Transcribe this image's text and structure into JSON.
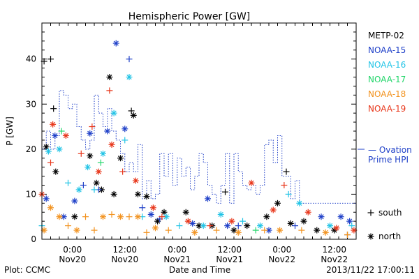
{
  "chart_data": {
    "type": "scatter",
    "title": "Hemispheric Power [GW]",
    "ylabel": "P [GW]",
    "xlabel": "Date and Time",
    "ylim": [
      0,
      48
    ],
    "xlim": [
      "2013-11-19 17:00",
      "2013-11-22 17:00"
    ],
    "y_ticks": [
      0,
      10,
      20,
      30,
      40
    ],
    "x_ticks": [
      {
        "time": "2013-11-20 00:00",
        "label": "0:00",
        "date": "Nov20"
      },
      {
        "time": "2013-11-20 12:00",
        "label": "12:00",
        "date": "Nov20"
      },
      {
        "time": "2013-11-21 00:00",
        "label": "0:00",
        "date": "Nov21"
      },
      {
        "time": "2013-11-21 12:00",
        "label": "12:00",
        "date": "Nov21"
      },
      {
        "time": "2013-11-22 00:00",
        "label": "0:00",
        "date": "Nov22"
      },
      {
        "time": "2013-11-22 12:00",
        "label": "12:00",
        "date": "Nov22"
      }
    ],
    "marker_legend": [
      {
        "symbol": "+",
        "label": "south"
      },
      {
        "symbol": "*",
        "label": "north"
      }
    ],
    "ovation": {
      "name": "Ovation Prime HPI",
      "name_line1": "— Ovation",
      "name_line2": "Prime HPI",
      "color": "#1e3fc8",
      "points": [
        [
          "2013-11-19 17:00",
          28
        ],
        [
          "2013-11-19 18:00",
          20
        ],
        [
          "2013-11-19 19:00",
          24
        ],
        [
          "2013-11-19 20:00",
          20
        ],
        [
          "2013-11-19 21:00",
          23
        ],
        [
          "2013-11-19 22:00",
          33
        ],
        [
          "2013-11-19 23:00",
          32
        ],
        [
          "2013-11-20 00:00",
          29
        ],
        [
          "2013-11-20 01:00",
          30
        ],
        [
          "2013-11-20 02:00",
          25
        ],
        [
          "2013-11-20 03:00",
          22
        ],
        [
          "2013-11-20 04:00",
          20
        ],
        [
          "2013-11-20 05:00",
          22
        ],
        [
          "2013-11-20 06:00",
          32
        ],
        [
          "2013-11-20 07:00",
          28
        ],
        [
          "2013-11-20 08:00",
          25
        ],
        [
          "2013-11-20 09:00",
          29
        ],
        [
          "2013-11-20 10:00",
          24
        ],
        [
          "2013-11-20 11:00",
          22
        ],
        [
          "2013-11-20 12:00",
          19
        ],
        [
          "2013-11-20 13:00",
          15
        ],
        [
          "2013-11-20 14:00",
          17
        ],
        [
          "2013-11-20 15:00",
          15
        ],
        [
          "2013-11-20 16:00",
          21
        ],
        [
          "2013-11-20 17:00",
          9
        ],
        [
          "2013-11-20 18:00",
          13
        ],
        [
          "2013-11-20 19:00",
          9
        ],
        [
          "2013-11-20 20:00",
          10
        ],
        [
          "2013-11-20 21:00",
          19
        ],
        [
          "2013-11-20 22:00",
          14
        ],
        [
          "2013-11-20 23:00",
          19
        ],
        [
          "2013-11-21 00:00",
          12
        ],
        [
          "2013-11-21 01:00",
          18
        ],
        [
          "2013-11-21 02:00",
          14
        ],
        [
          "2013-11-21 03:00",
          16
        ],
        [
          "2013-11-21 04:00",
          11
        ],
        [
          "2013-11-21 05:00",
          14
        ],
        [
          "2013-11-21 06:00",
          19
        ],
        [
          "2013-11-21 07:00",
          17
        ],
        [
          "2013-11-21 08:00",
          12
        ],
        [
          "2013-11-21 09:00",
          10
        ],
        [
          "2013-11-21 10:00",
          8
        ],
        [
          "2013-11-21 11:00",
          12
        ],
        [
          "2013-11-21 12:00",
          19
        ],
        [
          "2013-11-21 13:00",
          8
        ],
        [
          "2013-11-21 14:00",
          19
        ],
        [
          "2013-11-21 15:00",
          15
        ],
        [
          "2013-11-21 16:00",
          12
        ],
        [
          "2013-11-21 17:00",
          11
        ],
        [
          "2013-11-21 18:00",
          12
        ],
        [
          "2013-11-21 19:00",
          10
        ],
        [
          "2013-11-21 20:00",
          12
        ],
        [
          "2013-11-21 21:00",
          21
        ],
        [
          "2013-11-21 22:00",
          22
        ],
        [
          "2013-11-21 23:00",
          17
        ],
        [
          "2013-11-22 00:00",
          23
        ],
        [
          "2013-11-22 01:00",
          14
        ],
        [
          "2013-11-22 02:00",
          14
        ],
        [
          "2013-11-22 03:00",
          9
        ],
        [
          "2013-11-22 04:00",
          13
        ],
        [
          "2013-11-22 05:00",
          8
        ],
        [
          "2013-11-22 06:00",
          8
        ],
        [
          "2013-11-22 07:00",
          8
        ],
        [
          "2013-11-22 08:00",
          8
        ],
        [
          "2013-11-22 12:00",
          8
        ],
        [
          "2013-11-22 16:00",
          8
        ],
        [
          "2013-11-22 17:00",
          8
        ]
      ]
    },
    "series": [
      {
        "name": "METP-02",
        "color": "#000000",
        "points": [
          [
            "2013-11-19 17:30",
            39.5,
            "+"
          ],
          [
            "2013-11-19 19:00",
            40,
            "+"
          ],
          [
            "2013-11-19 19:40",
            29,
            "+"
          ],
          [
            "2013-11-19 18:00",
            20.5,
            "*"
          ],
          [
            "2013-11-19 20:10",
            15,
            "*"
          ],
          [
            "2013-11-20 00:30",
            5,
            "*"
          ],
          [
            "2013-11-20 04:00",
            18.5,
            "*"
          ],
          [
            "2013-11-20 05:30",
            12.5,
            "*"
          ],
          [
            "2013-11-20 06:40",
            11,
            "*"
          ],
          [
            "2013-11-20 08:30",
            36,
            "*"
          ],
          [
            "2013-11-20 09:30",
            10,
            "*"
          ],
          [
            "2013-11-20 11:00",
            18,
            "*"
          ],
          [
            "2013-11-20 13:30",
            28.5,
            "+"
          ],
          [
            "2013-11-20 14:00",
            27.5,
            "*"
          ],
          [
            "2013-11-20 15:00",
            10,
            "*"
          ],
          [
            "2013-11-20 17:00",
            9.5,
            "*"
          ],
          [
            "2013-11-20 19:30",
            4,
            "*"
          ],
          [
            "2013-11-20 21:00",
            6,
            "*"
          ],
          [
            "2013-11-21 02:00",
            6,
            "*"
          ],
          [
            "2013-11-21 05:00",
            3,
            "*"
          ],
          [
            "2013-11-21 08:00",
            3,
            "*"
          ],
          [
            "2013-11-21 11:00",
            10.5,
            "+"
          ],
          [
            "2013-11-21 13:00",
            2,
            "*"
          ],
          [
            "2013-11-21 16:00",
            3,
            "*"
          ],
          [
            "2013-11-21 20:30",
            5,
            "*"
          ],
          [
            "2013-11-21 23:00",
            8,
            "*"
          ],
          [
            "2013-11-22 01:00",
            15,
            "+"
          ],
          [
            "2013-11-22 02:00",
            3.5,
            "*"
          ],
          [
            "2013-11-22 05:00",
            4,
            "*"
          ],
          [
            "2013-11-22 08:00",
            2,
            "*"
          ],
          [
            "2013-11-22 12:00",
            2,
            "*"
          ],
          [
            "2013-11-22 15:00",
            1,
            "+"
          ]
        ]
      },
      {
        "name": "NOAA-15",
        "color": "#1e3fc8",
        "points": [
          [
            "2013-11-19 18:00",
            9,
            "*"
          ],
          [
            "2013-11-19 20:00",
            23,
            "*"
          ],
          [
            "2013-11-19 22:00",
            5,
            "*"
          ],
          [
            "2013-11-20 00:30",
            8.5,
            "*"
          ],
          [
            "2013-11-20 02:30",
            12,
            "+"
          ],
          [
            "2013-11-20 04:00",
            23.5,
            "*"
          ],
          [
            "2013-11-20 06:00",
            11,
            "+"
          ],
          [
            "2013-11-20 08:00",
            24,
            "*"
          ],
          [
            "2013-11-20 10:00",
            43.5,
            "*"
          ],
          [
            "2013-11-20 12:00",
            24.5,
            "*"
          ],
          [
            "2013-11-20 13:00",
            40,
            "+"
          ],
          [
            "2013-11-20 16:00",
            7,
            "+"
          ],
          [
            "2013-11-20 18:00",
            5.5,
            "*"
          ],
          [
            "2013-11-20 20:00",
            4.5,
            "+"
          ],
          [
            "2013-11-21 03:30",
            3.5,
            "*"
          ],
          [
            "2013-11-21 07:00",
            9,
            "*"
          ],
          [
            "2013-11-21 11:30",
            3,
            "*"
          ],
          [
            "2013-11-21 14:00",
            3,
            "+"
          ],
          [
            "2013-11-21 21:00",
            2,
            "*"
          ],
          [
            "2013-11-22 03:00",
            3,
            "+"
          ],
          [
            "2013-11-22 09:00",
            5,
            "*"
          ],
          [
            "2013-11-22 13:30",
            5,
            "*"
          ],
          [
            "2013-11-22 15:30",
            4,
            "*"
          ]
        ]
      },
      {
        "name": "NOAA-16",
        "color": "#22c4e6",
        "points": [
          [
            "2013-11-19 17:00",
            3,
            "+"
          ],
          [
            "2013-11-19 18:30",
            19.5,
            "*"
          ],
          [
            "2013-11-19 21:00",
            20,
            "*"
          ],
          [
            "2013-11-19 23:00",
            12.5,
            "+"
          ],
          [
            "2013-11-20 01:30",
            11,
            "*"
          ],
          [
            "2013-11-20 03:30",
            16,
            "*"
          ],
          [
            "2013-11-20 05:00",
            11,
            "+"
          ],
          [
            "2013-11-20 07:00",
            19,
            "*"
          ],
          [
            "2013-11-20 09:30",
            28,
            "*"
          ],
          [
            "2013-11-20 13:00",
            36,
            "*"
          ],
          [
            "2013-11-20 12:00",
            22,
            "+"
          ],
          [
            "2013-11-20 16:00",
            5,
            "+"
          ],
          [
            "2013-11-20 21:30",
            5,
            "*"
          ],
          [
            "2013-11-21 00:30",
            3,
            "+"
          ],
          [
            "2013-11-21 06:00",
            3,
            "*"
          ],
          [
            "2013-11-21 10:00",
            5.5,
            "*"
          ],
          [
            "2013-11-21 15:00",
            4,
            "+"
          ],
          [
            "2013-11-21 19:00",
            3,
            "*"
          ],
          [
            "2013-11-22 01:30",
            10,
            "+"
          ],
          [
            "2013-11-22 04:00",
            8,
            "*"
          ],
          [
            "2013-11-22 11:00",
            3,
            "*"
          ],
          [
            "2013-11-22 16:00",
            3,
            "+"
          ]
        ]
      },
      {
        "name": "NOAA-17",
        "color": "#22d66a",
        "points": [
          [
            "2013-11-19 21:30",
            24,
            "+"
          ],
          [
            "2013-11-20 06:30",
            17,
            "+"
          ],
          [
            "2013-11-21 18:00",
            2,
            "+"
          ]
        ]
      },
      {
        "name": "NOAA-18",
        "color": "#f29320",
        "points": [
          [
            "2013-11-19 17:30",
            2,
            "*"
          ],
          [
            "2013-11-19 19:00",
            7,
            "*"
          ],
          [
            "2013-11-19 21:00",
            5,
            "*"
          ],
          [
            "2013-11-19 23:00",
            3,
            "+"
          ],
          [
            "2013-11-20 01:00",
            2,
            "*"
          ],
          [
            "2013-11-20 03:00",
            5,
            "+"
          ],
          [
            "2013-11-20 05:00",
            2,
            "+"
          ],
          [
            "2013-11-20 07:00",
            5,
            "*"
          ],
          [
            "2013-11-20 09:00",
            5.5,
            "+"
          ],
          [
            "2013-11-20 11:00",
            5,
            "*"
          ],
          [
            "2013-11-20 13:00",
            5,
            "+"
          ],
          [
            "2013-11-20 15:00",
            5,
            "*"
          ],
          [
            "2013-11-20 17:00",
            1.5,
            "+"
          ],
          [
            "2013-11-20 19:00",
            2.5,
            "*"
          ],
          [
            "2013-11-20 22:00",
            2,
            "+"
          ],
          [
            "2013-11-21 04:00",
            1.5,
            "*"
          ],
          [
            "2013-11-21 09:00",
            2,
            "+"
          ],
          [
            "2013-11-21 14:00",
            1.5,
            "*"
          ],
          [
            "2013-11-21 20:00",
            2,
            "+"
          ],
          [
            "2013-11-21 23:30",
            2,
            "*"
          ],
          [
            "2013-11-22 04:30",
            2,
            "+"
          ],
          [
            "2013-11-22 10:00",
            1.5,
            "*"
          ],
          [
            "2013-11-22 15:00",
            1,
            "+"
          ]
        ]
      },
      {
        "name": "NOAA-19",
        "color": "#e8361a",
        "points": [
          [
            "2013-11-19 17:00",
            10,
            "*"
          ],
          [
            "2013-11-19 19:30",
            25.5,
            "*"
          ],
          [
            "2013-11-19 19:00",
            17,
            "+"
          ],
          [
            "2013-11-19 22:30",
            23,
            "*"
          ],
          [
            "2013-11-20 02:00",
            19,
            "+"
          ],
          [
            "2013-11-20 04:30",
            25,
            "+"
          ],
          [
            "2013-11-20 06:00",
            15,
            "*"
          ],
          [
            "2013-11-20 08:30",
            33,
            "+"
          ],
          [
            "2013-11-20 09:00",
            21,
            "*"
          ],
          [
            "2013-11-20 11:30",
            15,
            "+"
          ],
          [
            "2013-11-20 14:30",
            13,
            "*"
          ],
          [
            "2013-11-20 18:30",
            7,
            "*"
          ],
          [
            "2013-11-20 20:30",
            5,
            "+"
          ],
          [
            "2013-11-21 02:30",
            4,
            "*"
          ],
          [
            "2013-11-21 07:30",
            3,
            "+"
          ],
          [
            "2013-11-21 12:30",
            4,
            "*"
          ],
          [
            "2013-11-21 17:00",
            12.5,
            "*"
          ],
          [
            "2013-11-21 22:00",
            6.5,
            "*"
          ],
          [
            "2013-11-22 00:30",
            12,
            "+"
          ],
          [
            "2013-11-22 06:00",
            6,
            "*"
          ],
          [
            "2013-11-22 12:30",
            2.5,
            "*"
          ],
          [
            "2013-11-22 16:30",
            2,
            "*"
          ]
        ]
      }
    ]
  },
  "footer": {
    "credit": "Plot: CCMC",
    "timestamp": "2013/11/22 17:00:11"
  }
}
